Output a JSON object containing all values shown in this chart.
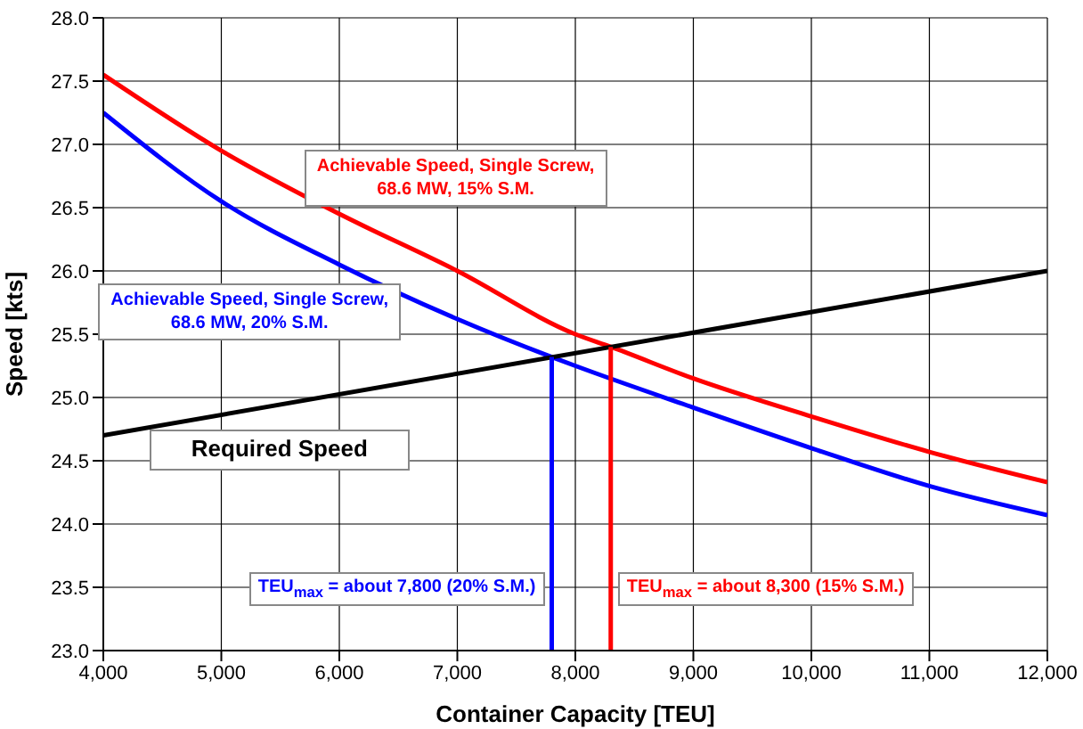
{
  "chart_data": {
    "type": "line",
    "xlabel": "Container Capacity [TEU]",
    "ylabel": "Speed [kts]",
    "xlim": [
      4000,
      12000
    ],
    "ylim": [
      23,
      28
    ],
    "xticks": [
      {
        "value": 4000,
        "label": "4,000"
      },
      {
        "value": 5000,
        "label": "5,000"
      },
      {
        "value": 6000,
        "label": "6,000"
      },
      {
        "value": 7000,
        "label": "7,000"
      },
      {
        "value": 8000,
        "label": "8,000"
      },
      {
        "value": 9000,
        "label": "9,000"
      },
      {
        "value": 10000,
        "label": "10,000"
      },
      {
        "value": 11000,
        "label": "11,000"
      },
      {
        "value": 12000,
        "label": "12,000"
      }
    ],
    "yticks": [
      {
        "value": 23,
        "label": "23.0"
      },
      {
        "value": 23.5,
        "label": "23.5"
      },
      {
        "value": 24,
        "label": "24.0"
      },
      {
        "value": 24.5,
        "label": "24.5"
      },
      {
        "value": 25,
        "label": "25.0"
      },
      {
        "value": 25.5,
        "label": "25.5"
      },
      {
        "value": 26,
        "label": "26.0"
      },
      {
        "value": 26.5,
        "label": "26.5"
      },
      {
        "value": 27,
        "label": "27.0"
      },
      {
        "value": 27.5,
        "label": "27.5"
      },
      {
        "value": 28,
        "label": "28.0"
      }
    ],
    "grid": true,
    "legend": false,
    "marker": "none",
    "series": [
      {
        "name": "Achievable Speed, Single Screw, 68.6 MW, 15% S.M.",
        "color": "#ff0000",
        "x": [
          4000,
          5000,
          6000,
          7000,
          8000,
          8300,
          9000,
          10000,
          11000,
          12000
        ],
        "values": [
          27.55,
          26.95,
          26.45,
          26.0,
          25.5,
          25.4,
          25.15,
          24.85,
          24.57,
          24.33
        ]
      },
      {
        "name": "Achievable Speed, Single Screw, 68.6 MW, 20% S.M.",
        "color": "#0000ff",
        "x": [
          4000,
          5000,
          6000,
          7000,
          7800,
          8000,
          9000,
          10000,
          11000,
          12000
        ],
        "values": [
          27.25,
          26.55,
          26.05,
          25.62,
          25.32,
          25.25,
          24.92,
          24.6,
          24.3,
          24.07
        ]
      },
      {
        "name": "Required Speed",
        "color": "#000000",
        "x": [
          4000,
          12000
        ],
        "values": [
          24.7,
          26.0
        ]
      },
      {
        "color": "#0000ff",
        "x": [
          7800,
          7800
        ],
        "values": [
          23,
          25.32
        ]
      },
      {
        "color": "#ff0000",
        "x": [
          8300,
          8300
        ],
        "values": [
          23,
          25.4
        ]
      }
    ],
    "annotations": [
      {
        "text": "TEU$_{max}$ = about 7,800 (20% S.M.)",
        "x": 7800,
        "y": 23.5
      },
      {
        "text": "TEU$_{max}$ = about 8,300 (15% S.M.)",
        "x": 8300,
        "y": 23.5
      }
    ]
  }
}
